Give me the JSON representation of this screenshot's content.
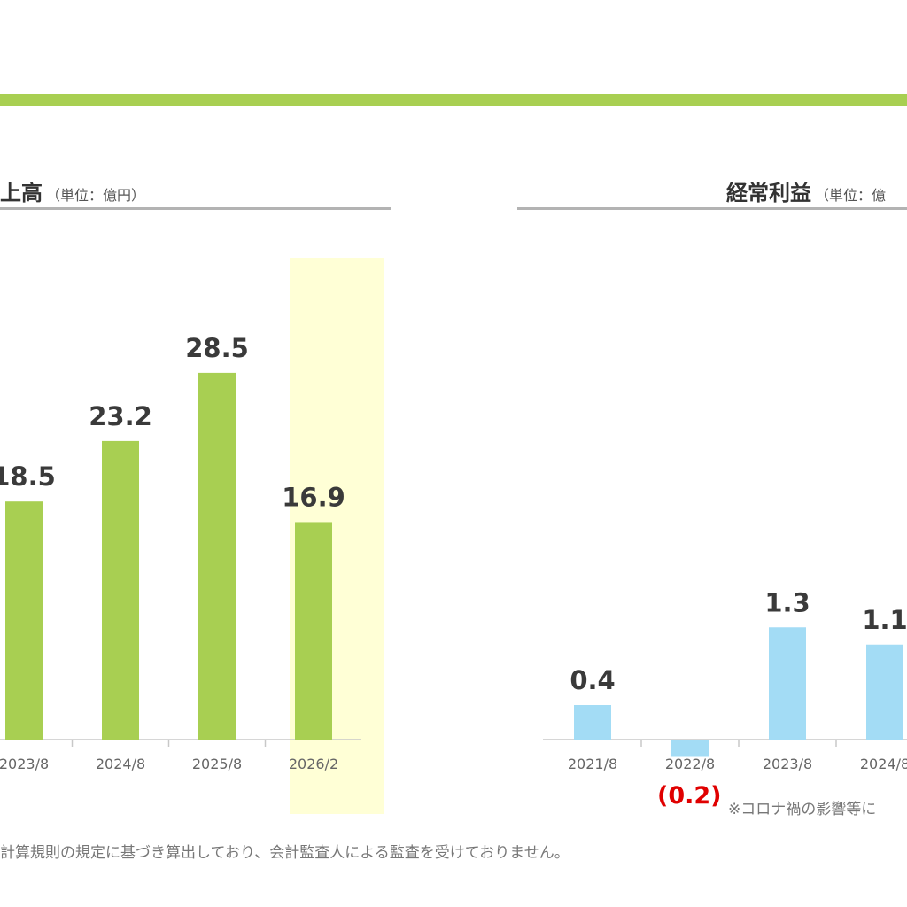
{
  "colors": {
    "accent": "#a8cf52",
    "highlight": "#ffffd6",
    "profit_bar": "#a3dcf5",
    "negative_label": "#e00000"
  },
  "sales_panel": {
    "title": "上高",
    "unit": "（単位：億円）"
  },
  "profit_panel": {
    "title": "経常利益",
    "unit": "（単位：億"
  },
  "footnote": "計算規則の規定に基づき算出しており、会計監査人による監査を受けておりません。",
  "profit_note": {
    "negative_label": "(0.2)",
    "text": "※コロナ禍の影響等に"
  },
  "chart_data": [
    {
      "type": "bar",
      "title": "上高",
      "unit": "（単位：億円）",
      "categories": [
        "2023/8",
        "2024/8",
        "2025/8",
        "2026/2"
      ],
      "values": [
        18.5,
        23.2,
        28.5,
        16.9
      ],
      "labels": [
        "18.5",
        "23.2",
        "28.5",
        "16.9"
      ],
      "highlight_category": "2026/2"
    },
    {
      "type": "bar",
      "title": "経常利益",
      "unit": "（単位：億",
      "categories": [
        "2021/8",
        "2022/8",
        "2023/8",
        "2024/8"
      ],
      "values": [
        0.4,
        -0.2,
        1.3,
        1.1
      ],
      "labels": [
        "0.4",
        "",
        "1.3",
        "1.1"
      ]
    }
  ]
}
